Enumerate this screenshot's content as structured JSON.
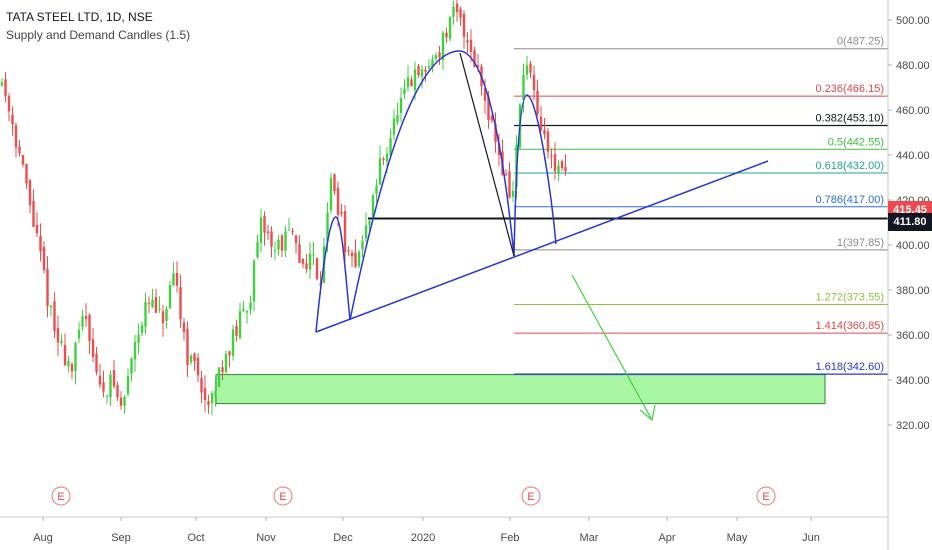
{
  "legend": {
    "title": "TATA STEEL LTD, 1D, NSE",
    "indicator": "Supply and Demand Candles (1.5)"
  },
  "colors": {
    "up": "#3ed33e",
    "down": "#ef4d4d",
    "trend": "#2a35d6",
    "arrow": "#3ed33e",
    "demand_zone": "#a8f5a3",
    "current_price_bg": "#f0484f",
    "level_bg": "#131722"
  },
  "chart_data": {
    "type": "candlestick",
    "title": "TATA STEEL LTD, 1D, NSE",
    "y_axis": {
      "ylim": [
        300,
        528
      ],
      "ticks": [
        320,
        340,
        360,
        380,
        400,
        420,
        440,
        460,
        480,
        500,
        520
      ]
    },
    "x_axis": {
      "labels": [
        "Aug",
        "Sep",
        "Oct",
        "Nov",
        "Dec",
        "2020",
        "Feb",
        "Mar",
        "Apr",
        "May",
        "Jun"
      ]
    },
    "current_price": "415.45",
    "horizontal_level": {
      "value": 411.8,
      "label": "411.80"
    },
    "fibonacci": [
      {
        "ratio": "0",
        "price": 487.25,
        "label": "0(487.25)",
        "color": "#8c8c8c"
      },
      {
        "ratio": "0.236",
        "price": 466.15,
        "label": "0.236(466.15)",
        "color": "#e0464c"
      },
      {
        "ratio": "0.382",
        "price": 453.1,
        "label": "0.382(453.10)",
        "color": "#131722"
      },
      {
        "ratio": "0.5",
        "price": 442.55,
        "label": "0.5(442.55)",
        "color": "#3ec23e"
      },
      {
        "ratio": "0.618",
        "price": 432.0,
        "label": "0.618(432.00)",
        "color": "#1ea58f"
      },
      {
        "ratio": "0.786",
        "price": 417.0,
        "label": "0.786(417.00)",
        "color": "#2a6ee0"
      },
      {
        "ratio": "1",
        "price": 397.85,
        "label": "1(397.85)",
        "color": "#8c8c8c"
      },
      {
        "ratio": "1.272",
        "price": 373.55,
        "label": "1.272(373.55)",
        "color": "#8cc43e"
      },
      {
        "ratio": "1.414",
        "price": 360.85,
        "label": "1.414(360.85)",
        "color": "#e0464c"
      },
      {
        "ratio": "1.618",
        "price": 342.6,
        "label": "1.618(342.60)",
        "color": "#2a35d6"
      }
    ],
    "demand_zone": {
      "low": 329.5,
      "high": 342.4
    },
    "events": [
      "E",
      "E",
      "E",
      "E"
    ]
  }
}
